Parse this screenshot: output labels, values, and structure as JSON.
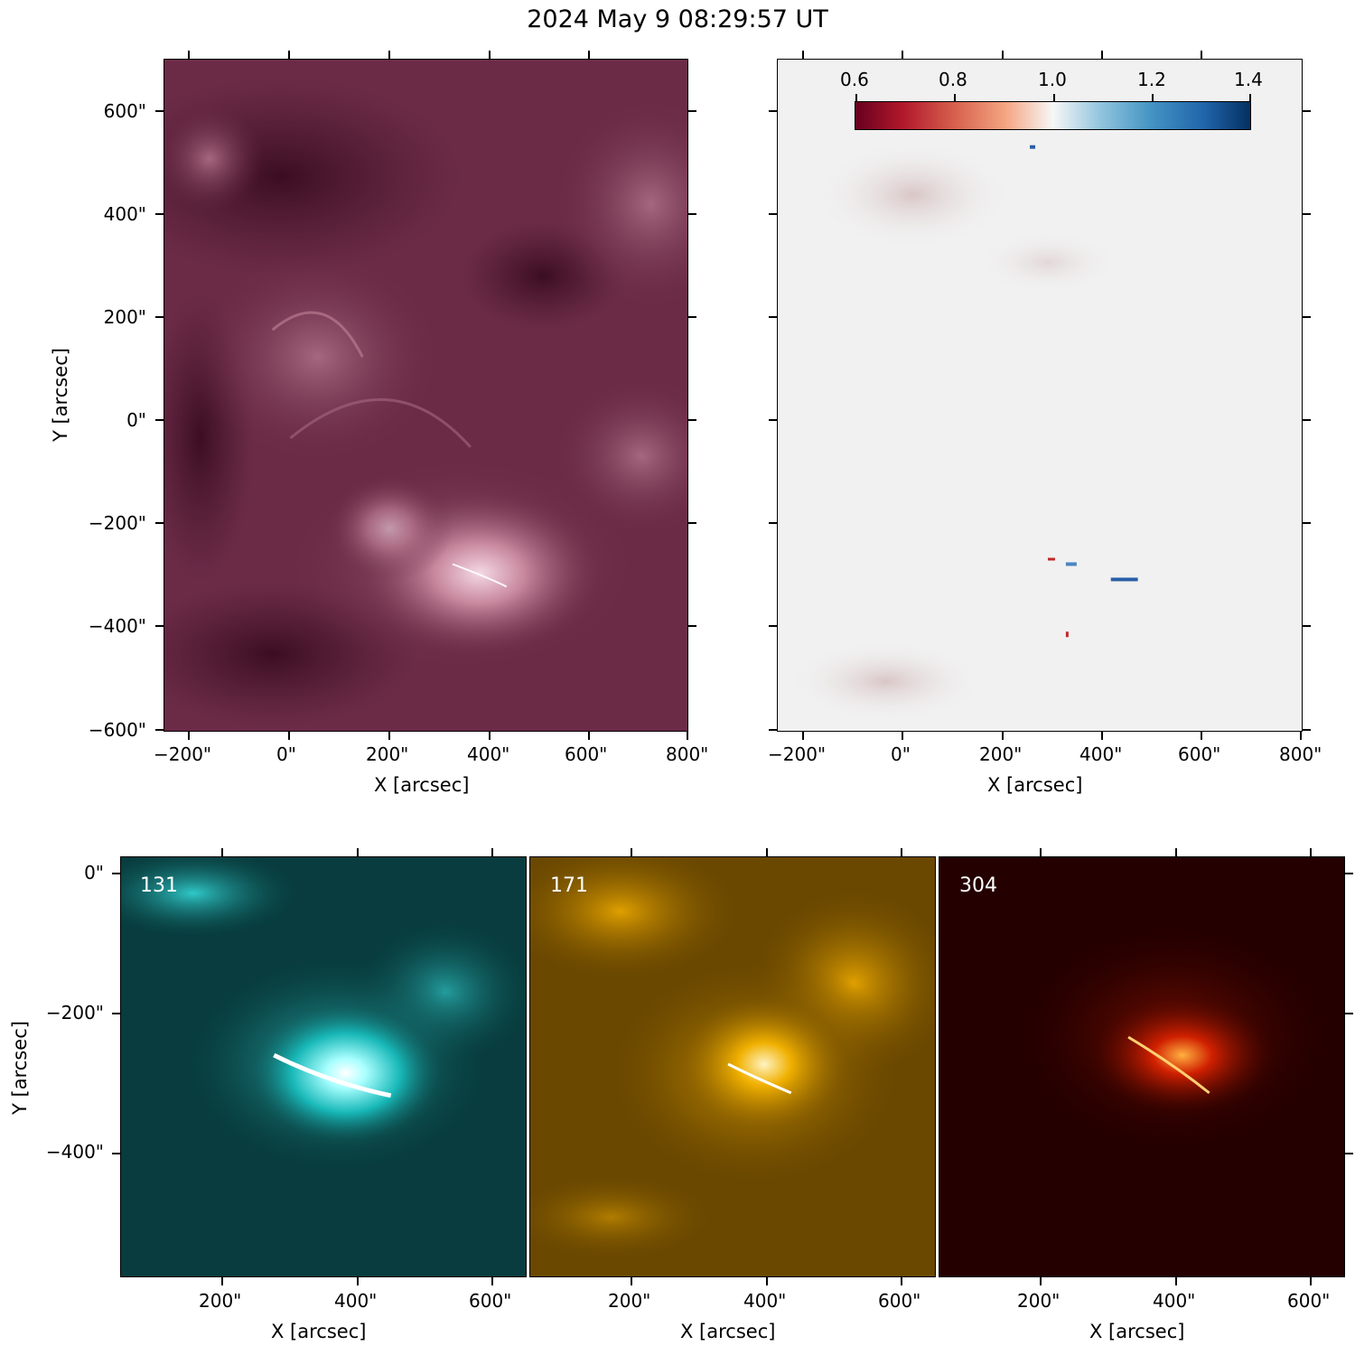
{
  "title": "2024 May 9 08:29:57 UT",
  "colors": {
    "aia211": "#6a2a45",
    "ratio_low": "#67001f",
    "ratio_mid": "#f7f7f7",
    "ratio_high": "#053061",
    "aia131": "#00c8c8",
    "aia171": "#d9a000",
    "aia304": "#c01800"
  },
  "top_left": {
    "xlabel": "X [arcsec]",
    "ylabel": "Y [arcsec]",
    "xticks": [
      "−200\"",
      "0\"",
      "200\"",
      "400\"",
      "600\"",
      "800\""
    ],
    "yticks": [
      "600\"",
      "400\"",
      "200\"",
      "0\"",
      "−200\"",
      "−400\"",
      "−600\""
    ]
  },
  "top_right": {
    "xlabel": "X [arcsec]",
    "xticks": [
      "−200\"",
      "0\"",
      "200\"",
      "400\"",
      "600\"",
      "800\""
    ],
    "colorbar": {
      "ticks": [
        "0.6",
        "0.8",
        "1.0",
        "1.2",
        "1.4"
      ],
      "min": 0.6,
      "max": 1.4,
      "colormap": "RdBu"
    }
  },
  "bottom": {
    "ylabel": "Y [arcsec]",
    "yticks": [
      "0\"",
      "−200\"",
      "−400\""
    ],
    "panels": [
      {
        "label": "131",
        "xlabel": "X [arcsec]",
        "xticks": [
          "200\"",
          "400\"",
          "600\""
        ]
      },
      {
        "label": "171",
        "xlabel": "X [arcsec]",
        "xticks": [
          "200\"",
          "400\"",
          "600\""
        ]
      },
      {
        "label": "304",
        "xlabel": "X [arcsec]",
        "xticks": [
          "200\"",
          "400\"",
          "600\""
        ]
      }
    ]
  }
}
